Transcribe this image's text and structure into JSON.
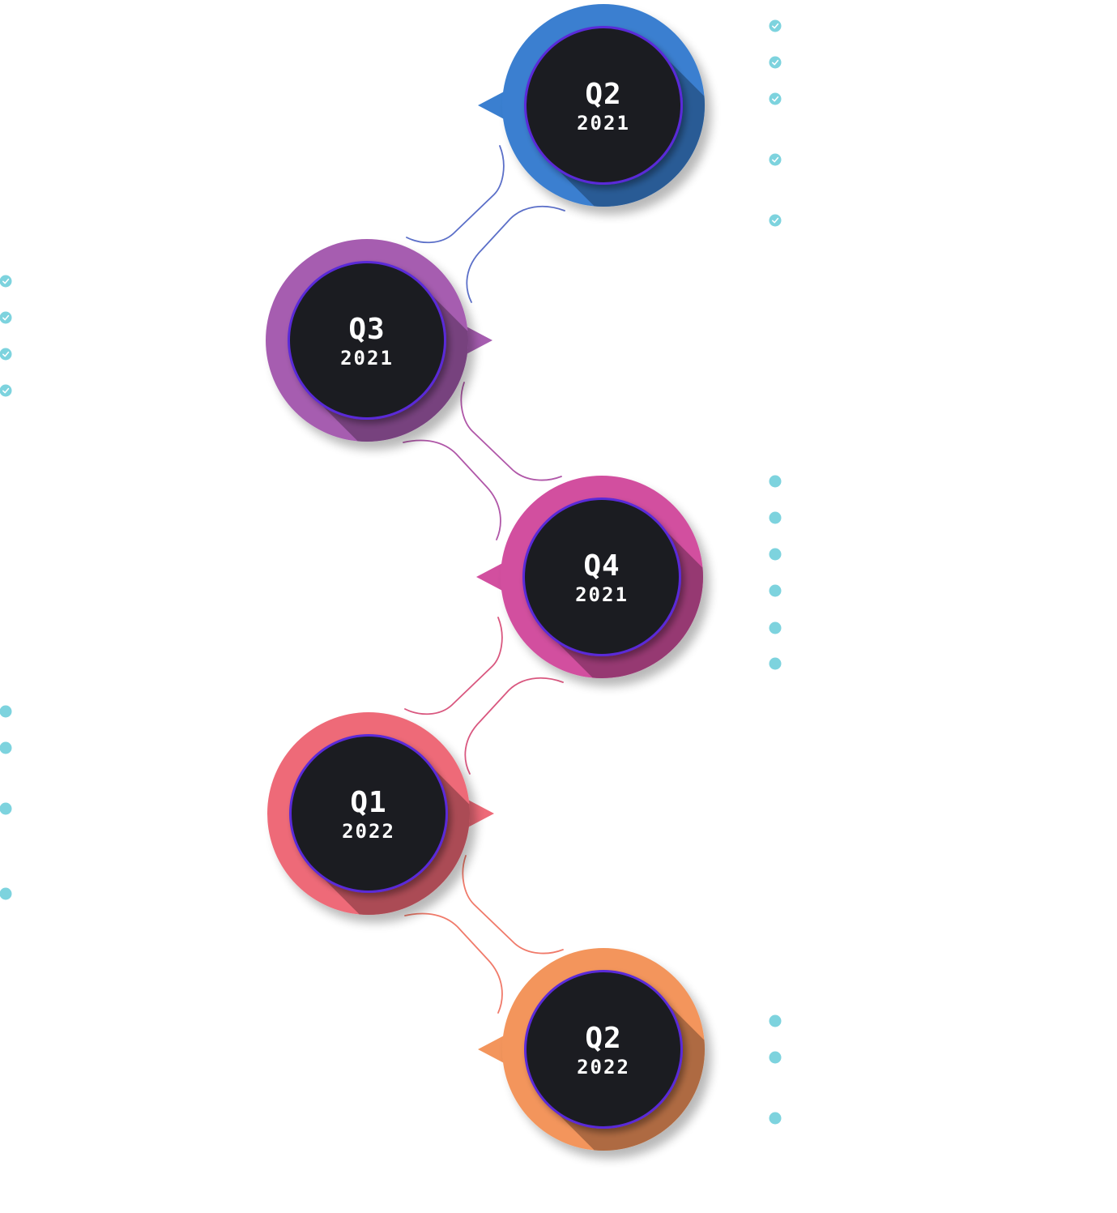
{
  "milestones": [
    {
      "quarter": "Q2",
      "year": "2021",
      "color": "#3a7fd0",
      "connector_color": "#5b6fc8"
    },
    {
      "quarter": "Q3",
      "year": "2021",
      "color": "#a65db0",
      "connector_color": "#b057a8"
    },
    {
      "quarter": "Q4",
      "year": "2021",
      "color": "#d24f9f",
      "connector_color": "#d9577f"
    },
    {
      "quarter": "Q1",
      "year": "2022",
      "color": "#ee6a78",
      "connector_color": "#f07a6a"
    },
    {
      "quarter": "Q2",
      "year": "2022",
      "color": "#f3955c",
      "connector_color": "#f3955c"
    }
  ],
  "bullet_groups": [
    {
      "side": "right",
      "style": "check",
      "count": 5
    },
    {
      "side": "left",
      "style": "check",
      "count": 4
    },
    {
      "side": "right",
      "style": "dot",
      "count": 6
    },
    {
      "side": "left",
      "style": "dot",
      "count": 4
    },
    {
      "side": "right",
      "style": "dot",
      "count": 3
    }
  ],
  "colors": {
    "disc": "#1b1c21",
    "disc_ring": "#5a2bd8",
    "bullet": "#7dd3de"
  }
}
